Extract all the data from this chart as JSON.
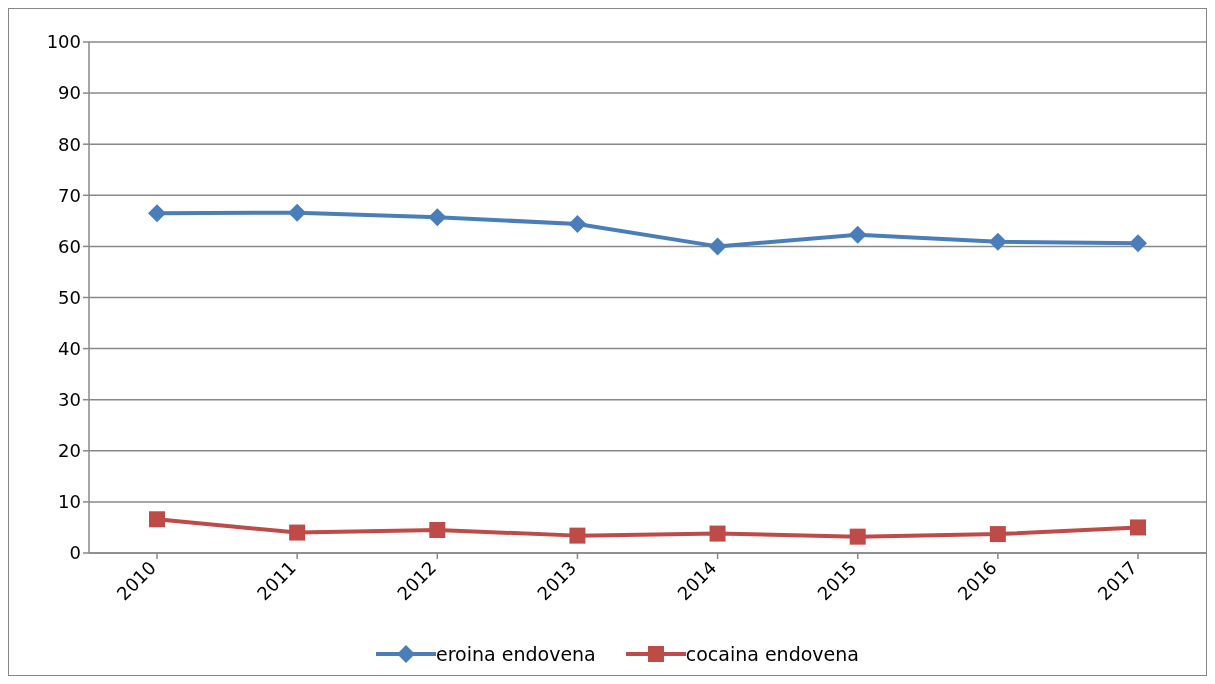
{
  "chart_data": {
    "type": "line",
    "categories": [
      "2010",
      "2011",
      "2012",
      "2013",
      "2014",
      "2015",
      "2016",
      "2017"
    ],
    "series": [
      {
        "name": "eroina endovena",
        "color": "#4a7ebb",
        "marker": "diamond",
        "values": [
          66.5,
          66.6,
          65.7,
          64.4,
          60.0,
          62.3,
          60.9,
          60.6
        ]
      },
      {
        "name": "cocaina endovena",
        "color": "#be4b48",
        "marker": "square",
        "values": [
          6.6,
          4.0,
          4.5,
          3.4,
          3.8,
          3.2,
          3.7,
          5.0
        ]
      }
    ],
    "ylim": [
      0,
      100
    ],
    "yticks": [
      0,
      10,
      20,
      30,
      40,
      50,
      60,
      70,
      80,
      90,
      100
    ],
    "grid": "y",
    "legend": "bottom"
  }
}
